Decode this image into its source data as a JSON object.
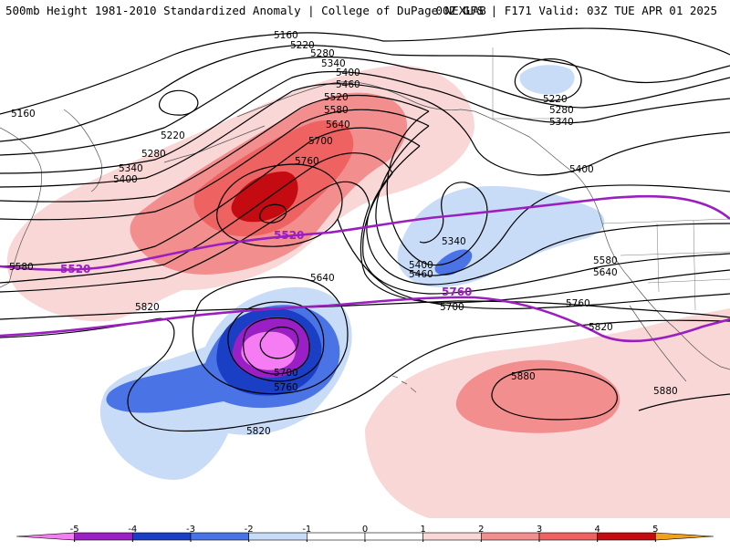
{
  "header": {
    "title": "500mb Height 1981-2010 Standardized Anomaly | College of DuPage NEXLAB",
    "run_info": "00Z GFS | F171 Valid: 03Z TUE APR 01 2025"
  },
  "colors": {
    "neg5": "#f57cf2",
    "neg4": "#9a1fc4",
    "neg3": "#1b3fc4",
    "neg2": "#4a74e6",
    "neg1": "#c9dcf7",
    "pos1": "#f9d7d7",
    "pos2": "#f38e8e",
    "pos3": "#ef6262",
    "pos4": "#c40b12",
    "pos5": "#f2a11f",
    "highlight_contour": "#9b1fc0"
  },
  "contour_labels": {
    "c5160_a": "5160",
    "c5160_b": "5160",
    "c5220_a": "5220",
    "c5220_b": "5220",
    "c5220_c": "5220",
    "c5280_a": "5280",
    "c5280_b": "5280",
    "c5280_c": "5280",
    "c5340_a": "5340",
    "c5340_b": "5340",
    "c5340_c": "5340",
    "c5400_a": "5400",
    "c5400_b": "5400",
    "c5400_c": "5400",
    "c5400_d": "5400",
    "c5460_a": "5460",
    "c5460_b": "5460",
    "c5520_a": "5520",
    "c5520_b": "5520",
    "c5520_c": "5520",
    "c5580_a": "5580",
    "c5580_b": "5580",
    "c5640_a": "5640",
    "c5640_b": "5640",
    "c5640_c": "5640",
    "c5700_a": "5700",
    "c5700_b": "5700",
    "c5700_c": "5700",
    "c5760_a": "5760",
    "c5760_b": "5760",
    "c5760_c": "5760",
    "c5760_d": "5760",
    "c5820_a": "5820",
    "c5820_b": "5820",
    "c5820_c": "5820",
    "c5880_a": "5880",
    "c5880_b": "5880",
    "c5340_d": "5340",
    "c5580_c": "5580"
  },
  "colorbar": {
    "ticks": [
      "-5",
      "-4",
      "-3",
      "-2",
      "-1",
      "0",
      "1",
      "2",
      "3",
      "4",
      "5"
    ],
    "range": [
      -6,
      6
    ]
  }
}
